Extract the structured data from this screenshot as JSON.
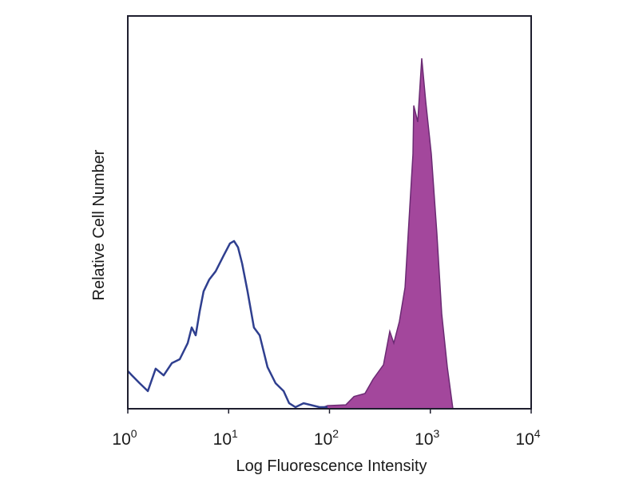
{
  "chart_data": {
    "type": "area",
    "title": "",
    "xlabel": "Log Fluorescence Intensity",
    "ylabel": "Relative Cell Number",
    "x_scale": "log",
    "xlim": [
      1,
      10000
    ],
    "ylim": [
      0,
      100
    ],
    "grid": false,
    "legend": "none",
    "x_ticks": [
      {
        "base": "10",
        "exp": "0",
        "value": 1
      },
      {
        "base": "10",
        "exp": "1",
        "value": 10
      },
      {
        "base": "10",
        "exp": "2",
        "value": 100
      },
      {
        "base": "10",
        "exp": "3",
        "value": 1000
      },
      {
        "base": "10",
        "exp": "4",
        "value": 10000
      }
    ],
    "series": [
      {
        "style": "line",
        "color": "#2f3f8f",
        "x": [
          1.0,
          1.1,
          1.31,
          1.58,
          1.89,
          2.27,
          2.73,
          3.27,
          3.93,
          4.3,
          4.71,
          5.16,
          5.65,
          6.43,
          7.43,
          8.92,
          10.3,
          11.3,
          12.4,
          13.6,
          15.4,
          17.8,
          20.3,
          24.3,
          29.2,
          35.1,
          39.8,
          46.0,
          55.3,
          79.6,
          95.5
        ],
        "y": [
          9.6,
          8.5,
          6.5,
          4.5,
          10.2,
          8.5,
          11.6,
          12.6,
          16.7,
          20.7,
          18.7,
          24.8,
          29.9,
          32.9,
          35.0,
          39.0,
          42.1,
          42.7,
          41.1,
          37.0,
          29.9,
          20.7,
          18.7,
          10.6,
          6.5,
          4.5,
          1.4,
          0.4,
          1.4,
          0.4,
          0.4
        ]
      },
      {
        "style": "filled",
        "color": "#a3479c",
        "stroke": "#6b2a73",
        "x": [
          79.6,
          95.5,
          145,
          175,
          225,
          270,
          343,
          396,
          434,
          493,
          561,
          625,
          673,
          685,
          750,
          822,
          900,
          1023,
          1162,
          1297,
          1473,
          1675
        ],
        "y": [
          0,
          0.8,
          1.0,
          3.1,
          3.9,
          7.5,
          11.2,
          19.7,
          16.7,
          22.2,
          30.9,
          51.2,
          64.8,
          77.2,
          73.0,
          89.2,
          78.2,
          64.8,
          44.5,
          24.2,
          10.6,
          0
        ]
      }
    ]
  }
}
